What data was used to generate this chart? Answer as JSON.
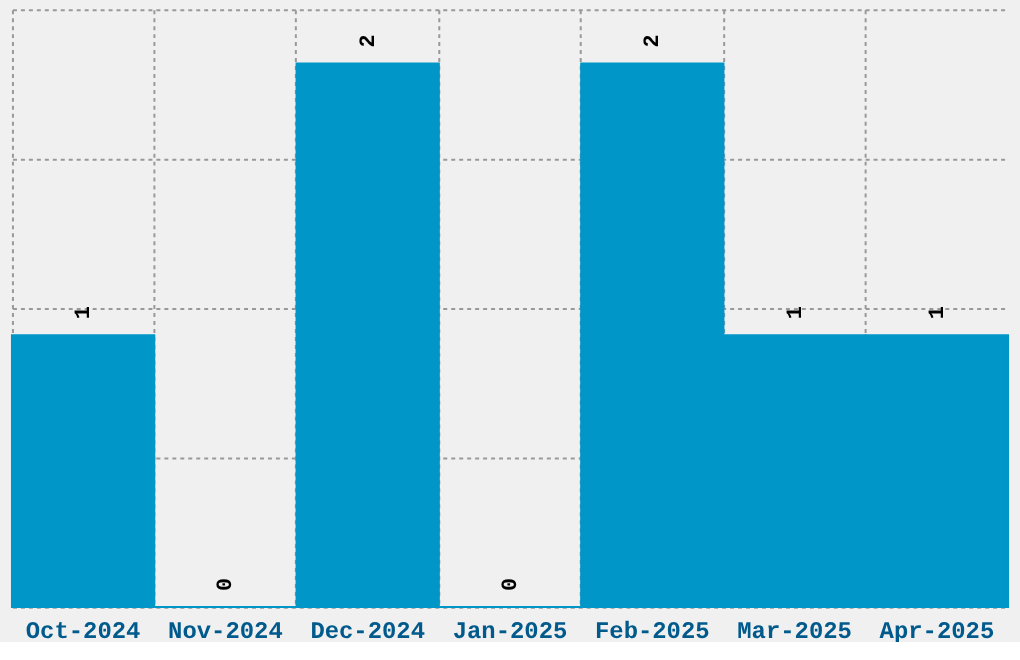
{
  "chart_data": {
    "type": "bar",
    "categories": [
      "Oct-2024",
      "Nov-2024",
      "Dec-2024",
      "Jan-2025",
      "Feb-2025",
      "Mar-2025",
      "Apr-2025"
    ],
    "values": [
      1,
      0,
      2,
      0,
      2,
      1,
      1
    ],
    "color": "#0096c8",
    "ylim": [
      0,
      2.2
    ],
    "yticks": [
      {
        "value": 0,
        "label": null
      },
      {
        "value": 0.55,
        "label": null
      },
      {
        "value": 1.1,
        "label": null
      },
      {
        "value": 1.65,
        "label": null
      },
      {
        "value": 2.2,
        "label": null
      }
    ],
    "grid": true,
    "data_labels": true,
    "tick_labels": "x"
  }
}
